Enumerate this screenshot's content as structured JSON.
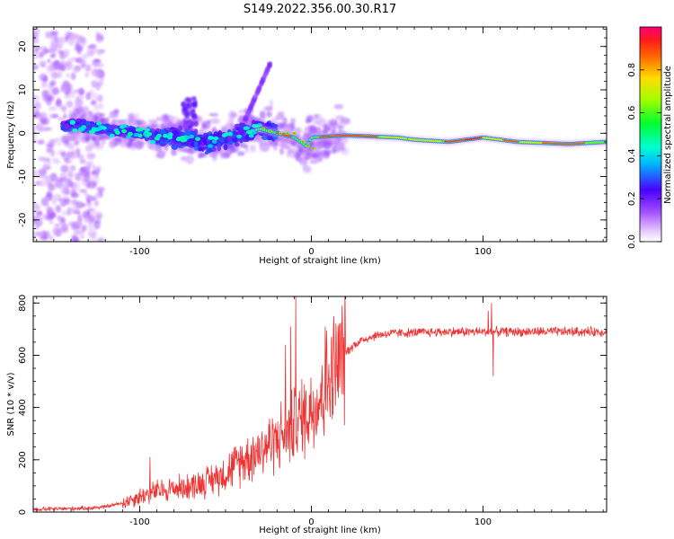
{
  "title": "S149.2022.356.00.30.R17",
  "chart_data": [
    {
      "type": "heatmap",
      "xlabel": "Height of straight line (km)",
      "ylabel": "Frequency (Hz)",
      "xlim": [
        -162,
        172
      ],
      "ylim": [
        -25,
        24.5
      ],
      "xticks": [
        -100,
        0,
        100
      ],
      "yticks": [
        -20,
        -10,
        0,
        10,
        20
      ],
      "colorbar": {
        "label": "Normalized spectral amplitude",
        "range": [
          0,
          1
        ],
        "ticks": [
          "0.0",
          "0.2",
          "0.4",
          "0.6",
          "0.8"
        ],
        "colormap": "rainbow"
      },
      "ridge": [
        {
          "x": -160,
          "f": 1.5
        },
        {
          "x": -140,
          "f": 2
        },
        {
          "x": -120,
          "f": 1
        },
        {
          "x": -100,
          "f": 0
        },
        {
          "x": -80,
          "f": -1
        },
        {
          "x": -60,
          "f": -2
        },
        {
          "x": -40,
          "f": 0
        },
        {
          "x": -30,
          "f": 1
        },
        {
          "x": -20,
          "f": 0
        },
        {
          "x": -10,
          "f": -1
        },
        {
          "x": -3,
          "f": -3
        },
        {
          "x": 0,
          "f": -1
        },
        {
          "x": 20,
          "f": -0.5
        },
        {
          "x": 50,
          "f": -1
        },
        {
          "x": 60,
          "f": -1.5
        },
        {
          "x": 80,
          "f": -2
        },
        {
          "x": 100,
          "f": -1
        },
        {
          "x": 120,
          "f": -2
        },
        {
          "x": 150,
          "f": -2.5
        },
        {
          "x": 172,
          "f": -2
        }
      ]
    },
    {
      "type": "line",
      "xlabel": "Height of straight line (km)",
      "ylabel": "SNR (10 * v/v)",
      "xlim": [
        -162,
        172
      ],
      "ylim": [
        0,
        825
      ],
      "xticks": [
        -100,
        0,
        100
      ],
      "yticks": [
        0,
        200,
        400,
        600,
        800
      ],
      "color": "#ee3333",
      "trend": [
        {
          "x": -162,
          "y": 10
        },
        {
          "x": -130,
          "y": 15
        },
        {
          "x": -120,
          "y": 20
        },
        {
          "x": -110,
          "y": 35
        },
        {
          "x": -100,
          "y": 60
        },
        {
          "x": -90,
          "y": 80
        },
        {
          "x": -70,
          "y": 100
        },
        {
          "x": -60,
          "y": 120
        },
        {
          "x": -50,
          "y": 150
        },
        {
          "x": -40,
          "y": 200
        },
        {
          "x": -30,
          "y": 240
        },
        {
          "x": -20,
          "y": 280
        },
        {
          "x": -10,
          "y": 330
        },
        {
          "x": 0,
          "y": 400
        },
        {
          "x": 5,
          "y": 440
        },
        {
          "x": 10,
          "y": 500
        },
        {
          "x": 15,
          "y": 560
        },
        {
          "x": 20,
          "y": 610
        },
        {
          "x": 25,
          "y": 640
        },
        {
          "x": 30,
          "y": 660
        },
        {
          "x": 40,
          "y": 680
        },
        {
          "x": 50,
          "y": 685
        },
        {
          "x": 80,
          "y": 690
        },
        {
          "x": 100,
          "y": 690
        },
        {
          "x": 130,
          "y": 690
        },
        {
          "x": 172,
          "y": 690
        }
      ],
      "spikes": [
        {
          "x": -94,
          "y": 210
        },
        {
          "x": -15,
          "y": 640
        },
        {
          "x": -12,
          "y": 710
        },
        {
          "x": -9,
          "y": 825
        },
        {
          "x": 8,
          "y": 710
        },
        {
          "x": 105,
          "y": 800
        },
        {
          "x": 106,
          "y": 520
        },
        {
          "x": 103,
          "y": 770
        }
      ]
    }
  ]
}
